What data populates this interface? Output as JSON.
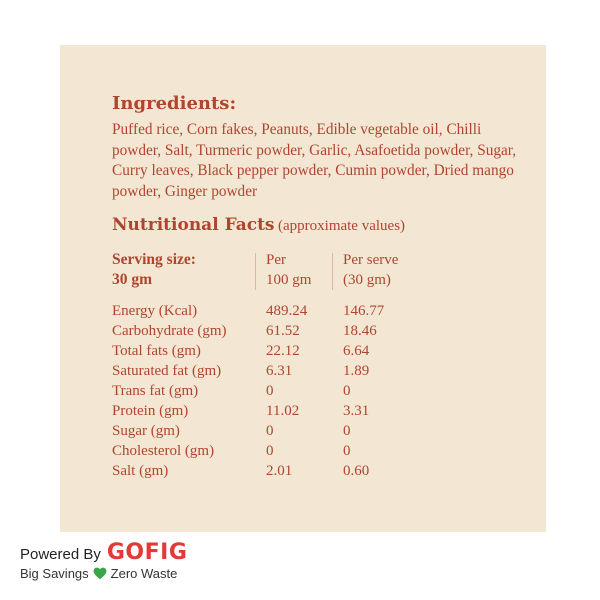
{
  "ingredients": {
    "title": "Ingredients:",
    "text": "Puffed rice, Corn fakes, Peanuts, Edible vegetable oil, Chilli powder, Salt, Turmeric powder, Garlic, Asafoetida powder, Sugar, Curry leaves, Black pepper powder, Cumin powder, Dried mango powder, Ginger powder"
  },
  "nutrition": {
    "title": "Nutritional Facts",
    "note": "(approximate values)",
    "serving_label": "Serving size:",
    "serving_value": "30 gm",
    "col1_line1": "Per",
    "col1_line2": "100 gm",
    "col2_line1": "Per serve",
    "col2_line2": "(30 gm)",
    "rows": [
      {
        "name": "Energy (Kcal)",
        "per100": "489.24",
        "perServe": "146.77"
      },
      {
        "name": "Carbohydrate (gm)",
        "per100": "61.52",
        "perServe": "18.46"
      },
      {
        "name": "Total fats (gm)",
        "per100": "22.12",
        "perServe": "6.64"
      },
      {
        "name": "Saturated fat (gm)",
        "per100": "6.31",
        "perServe": "1.89"
      },
      {
        "name": "Trans fat (gm)",
        "per100": "0",
        "perServe": "0"
      },
      {
        "name": "Protein (gm)",
        "per100": "11.02",
        "perServe": "3.31"
      },
      {
        "name": "Sugar (gm)",
        "per100": "0",
        "perServe": "0"
      },
      {
        "name": "Cholesterol (gm)",
        "per100": "0",
        "perServe": "0"
      },
      {
        "name": "Salt (gm)",
        "per100": "2.01",
        "perServe": "0.60"
      }
    ]
  },
  "footer": {
    "powered_by": "Powered By",
    "brand": "GOFIG",
    "tagline_left": "Big Savings",
    "tagline_right": "Zero Waste",
    "heart_icon": "green-heart-icon"
  },
  "colors": {
    "panel_bg": "#f3e6d3",
    "text": "#b0452f",
    "brand": "#e53935",
    "heart": "#3aa548"
  }
}
